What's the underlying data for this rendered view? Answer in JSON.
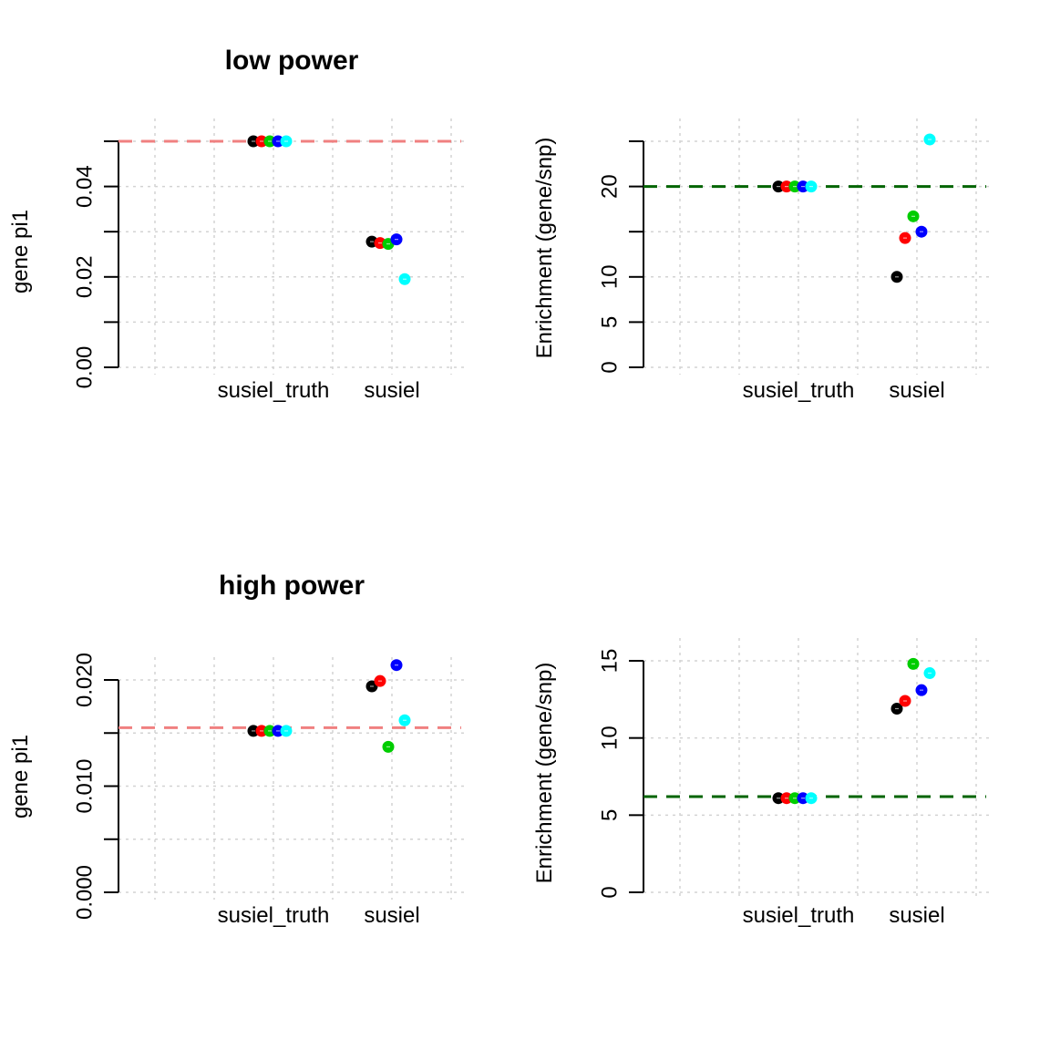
{
  "figure": {
    "colors": {
      "black": "#000000",
      "red": "#ff0000",
      "green": "#00cd00",
      "blue": "#0000ff",
      "cyan": "#00ffff",
      "pi1_ref_line": "#f08080",
      "enrichment_ref_line": "#006400",
      "grid": "#d3d3d3"
    }
  },
  "chart_data": [
    {
      "type": "scatter",
      "title": "low power",
      "xlabel": "",
      "ylabel": "gene pi1",
      "categories": [
        "susiel_truth",
        "susiel"
      ],
      "ylim": [
        0,
        0.05
      ],
      "yticks": [
        0,
        0.01,
        0.02,
        0.03,
        0.04,
        0.05
      ],
      "ytick_labels": [
        "0.00",
        "",
        "0.02",
        "",
        "0.04",
        ""
      ],
      "reference_line": {
        "y": 0.05,
        "style": "dashed",
        "color": "#f08080"
      },
      "grid": true,
      "series": [
        {
          "color": "#000000",
          "values": [
            0.05,
            0.0278
          ]
        },
        {
          "color": "#ff0000",
          "values": [
            0.05,
            0.0275
          ]
        },
        {
          "color": "#00cd00",
          "values": [
            0.05,
            0.0273
          ]
        },
        {
          "color": "#0000ff",
          "values": [
            0.05,
            0.0283
          ]
        },
        {
          "color": "#00ffff",
          "values": [
            0.05,
            0.0195
          ]
        }
      ]
    },
    {
      "type": "scatter",
      "title": "",
      "xlabel": "",
      "ylabel": "Enrichment (gene/snp)",
      "categories": [
        "susiel_truth",
        "susiel"
      ],
      "ylim": [
        0,
        25
      ],
      "yticks": [
        0,
        5,
        10,
        15,
        20,
        25
      ],
      "ytick_labels": [
        "0",
        "5",
        "10",
        "",
        "20",
        ""
      ],
      "reference_line": {
        "y": 20,
        "style": "dashed",
        "color": "#006400"
      },
      "grid": true,
      "series": [
        {
          "color": "#000000",
          "values": [
            20,
            10
          ]
        },
        {
          "color": "#ff0000",
          "values": [
            20,
            14.3
          ]
        },
        {
          "color": "#00cd00",
          "values": [
            20,
            16.7
          ]
        },
        {
          "color": "#0000ff",
          "values": [
            20,
            15
          ]
        },
        {
          "color": "#00ffff",
          "values": [
            20,
            25.2
          ]
        }
      ]
    },
    {
      "type": "scatter",
      "title": "high power",
      "xlabel": "",
      "ylabel": "gene pi1",
      "categories": [
        "susiel_truth",
        "susiel"
      ],
      "ylim": [
        0,
        0.02
      ],
      "yticks": [
        0,
        0.005,
        0.01,
        0.015,
        0.02
      ],
      "ytick_labels": [
        "0.000",
        "",
        "0.010",
        "",
        "0.020"
      ],
      "reference_line": {
        "y": 0.0155,
        "style": "dashed",
        "color": "#f08080"
      },
      "grid": true,
      "series": [
        {
          "color": "#000000",
          "values": [
            0.0152,
            0.0194
          ]
        },
        {
          "color": "#ff0000",
          "values": [
            0.0152,
            0.0199
          ]
        },
        {
          "color": "#00cd00",
          "values": [
            0.0152,
            0.0137
          ]
        },
        {
          "color": "#0000ff",
          "values": [
            0.0152,
            0.0214
          ]
        },
        {
          "color": "#00ffff",
          "values": [
            0.0152,
            0.0162
          ]
        }
      ]
    },
    {
      "type": "scatter",
      "title": "",
      "xlabel": "",
      "ylabel": "Enrichment (gene/snp)",
      "categories": [
        "susiel_truth",
        "susiel"
      ],
      "ylim": [
        0,
        15
      ],
      "yticks": [
        0,
        5,
        10,
        15
      ],
      "ytick_labels": [
        "0",
        "5",
        "10",
        "15"
      ],
      "reference_line": {
        "y": 6.2,
        "style": "dashed",
        "color": "#006400"
      },
      "grid": true,
      "series": [
        {
          "color": "#000000",
          "values": [
            6.1,
            11.9
          ]
        },
        {
          "color": "#ff0000",
          "values": [
            6.1,
            12.4
          ]
        },
        {
          "color": "#00cd00",
          "values": [
            6.1,
            14.8
          ]
        },
        {
          "color": "#0000ff",
          "values": [
            6.1,
            13.1
          ]
        },
        {
          "color": "#00ffff",
          "values": [
            6.1,
            14.2
          ]
        }
      ]
    }
  ]
}
